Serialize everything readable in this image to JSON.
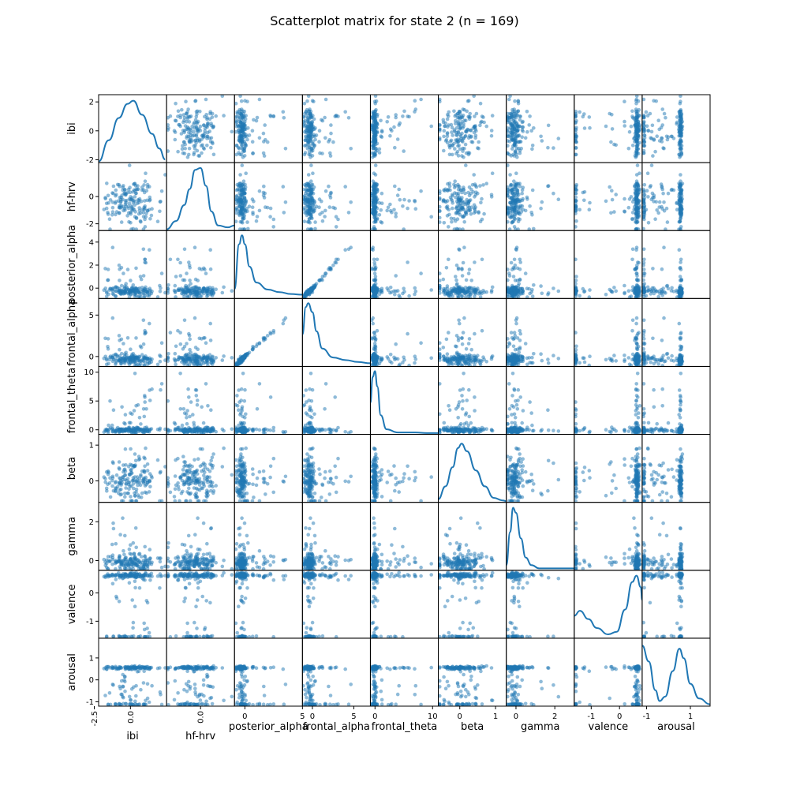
{
  "title": "Scatterplot matrix for state 2 (n = 169)",
  "colors": {
    "series": "#1f77b4"
  },
  "chart_data": {
    "type": "scatter",
    "kind": "scatter-matrix",
    "n": 169,
    "diagonal": "kde",
    "variables": [
      {
        "name": "ibi",
        "range": [
          -2.2,
          2.5
        ],
        "yticks": [
          2,
          0,
          -2
        ],
        "xticks": [
          0.0,
          -2.5
        ],
        "xticks_rotated": true,
        "kde": [
          [
            -2.2,
            0.02
          ],
          [
            -1.5,
            0.35
          ],
          [
            -0.8,
            0.7
          ],
          [
            -0.2,
            0.92
          ],
          [
            0.2,
            0.97
          ],
          [
            0.8,
            0.75
          ],
          [
            1.5,
            0.45
          ],
          [
            2.0,
            0.22
          ],
          [
            2.4,
            0.05
          ]
        ]
      },
      {
        "name": "hf-hrv",
        "range": [
          -2.5,
          2.5
        ],
        "yticks": [
          0,
          -2
        ],
        "xticks": [
          0.0
        ],
        "xticks_rotated": true,
        "kde": [
          [
            -2.5,
            0.02
          ],
          [
            -1.8,
            0.15
          ],
          [
            -1.2,
            0.4
          ],
          [
            -0.8,
            0.65
          ],
          [
            -0.4,
            0.95
          ],
          [
            0.0,
            0.98
          ],
          [
            0.4,
            0.7
          ],
          [
            0.8,
            0.3
          ],
          [
            1.3,
            0.08
          ],
          [
            2.0,
            0.05
          ],
          [
            2.5,
            0.08
          ]
        ]
      },
      {
        "name": "posterior_alpha",
        "range": [
          -0.9,
          5
        ],
        "yticks": [
          4,
          2,
          0
        ],
        "xticks": [
          0,
          5
        ],
        "xticks_rotated": false,
        "kde": [
          [
            -0.9,
            0.15
          ],
          [
            -0.5,
            0.85
          ],
          [
            -0.25,
            0.99
          ],
          [
            0.0,
            0.85
          ],
          [
            0.4,
            0.5
          ],
          [
            1.0,
            0.25
          ],
          [
            2.0,
            0.14
          ],
          [
            3.0,
            0.1
          ],
          [
            4.0,
            0.07
          ],
          [
            5.0,
            0.06
          ]
        ]
      },
      {
        "name": "frontal_alpha",
        "range": [
          -1.2,
          7
        ],
        "yticks": [
          5,
          0
        ],
        "xticks": [
          0,
          5
        ],
        "xticks_rotated": false,
        "kde": [
          [
            -1.2,
            0.5
          ],
          [
            -0.8,
            0.93
          ],
          [
            -0.5,
            0.99
          ],
          [
            0.0,
            0.85
          ],
          [
            0.5,
            0.55
          ],
          [
            1.2,
            0.28
          ],
          [
            2.5,
            0.14
          ],
          [
            4.0,
            0.1
          ],
          [
            5.5,
            0.07
          ],
          [
            7.0,
            0.05
          ]
        ]
      },
      {
        "name": "frontal_theta",
        "range": [
          -0.8,
          11
        ],
        "yticks": [
          10,
          5,
          0
        ],
        "xticks": [
          0,
          10
        ],
        "xticks_rotated": false,
        "kde": [
          [
            -0.8,
            0.5
          ],
          [
            -0.4,
            0.9
          ],
          [
            0.0,
            0.99
          ],
          [
            0.4,
            0.75
          ],
          [
            1.0,
            0.3
          ],
          [
            2.0,
            0.08
          ],
          [
            4.0,
            0.03
          ],
          [
            7.0,
            0.03
          ],
          [
            9.0,
            0.02
          ],
          [
            11.0,
            0.02
          ]
        ]
      },
      {
        "name": "beta",
        "range": [
          -0.6,
          1.3
        ],
        "yticks": [
          1,
          0
        ],
        "xticks": [
          0,
          1
        ],
        "xticks_rotated": false,
        "kde": [
          [
            -0.6,
            0.05
          ],
          [
            -0.4,
            0.25
          ],
          [
            -0.2,
            0.55
          ],
          [
            -0.05,
            0.85
          ],
          [
            0.05,
            0.92
          ],
          [
            0.2,
            0.8
          ],
          [
            0.45,
            0.5
          ],
          [
            0.7,
            0.25
          ],
          [
            0.95,
            0.07
          ],
          [
            1.2,
            0.03
          ],
          [
            1.3,
            0.02
          ]
        ]
      },
      {
        "name": "gamma",
        "range": [
          -0.5,
          3
        ],
        "yticks": [
          2,
          0
        ],
        "xticks": [
          0,
          2
        ],
        "xticks_rotated": false,
        "kde": [
          [
            -0.5,
            0.08
          ],
          [
            -0.3,
            0.6
          ],
          [
            -0.15,
            0.98
          ],
          [
            0.0,
            0.9
          ],
          [
            0.25,
            0.5
          ],
          [
            0.5,
            0.2
          ],
          [
            0.8,
            0.08
          ],
          [
            1.2,
            0.03
          ],
          [
            2.0,
            0.03
          ],
          [
            3.0,
            0.03
          ]
        ]
      },
      {
        "name": "valence",
        "range": [
          -1.6,
          0.8
        ],
        "yticks": [
          0,
          -1
        ],
        "xticks": [
          -1,
          0
        ],
        "xticks_rotated": false,
        "kde": [
          [
            -1.6,
            0.35
          ],
          [
            -1.4,
            0.43
          ],
          [
            -1.1,
            0.3
          ],
          [
            -0.8,
            0.16
          ],
          [
            -0.4,
            0.06
          ],
          [
            -0.1,
            0.1
          ],
          [
            0.2,
            0.45
          ],
          [
            0.45,
            0.88
          ],
          [
            0.6,
            0.98
          ],
          [
            0.75,
            0.8
          ],
          [
            0.8,
            0.6
          ]
        ]
      },
      {
        "name": "arousal",
        "range": [
          -1.2,
          1.9
        ],
        "yticks": [
          1,
          0,
          -1
        ],
        "xticks": [
          -1,
          1
        ],
        "xticks_rotated": false,
        "kde": [
          [
            -1.2,
            0.95
          ],
          [
            -0.9,
            0.7
          ],
          [
            -0.6,
            0.25
          ],
          [
            -0.4,
            0.08
          ],
          [
            -0.15,
            0.15
          ],
          [
            0.2,
            0.55
          ],
          [
            0.5,
            0.9
          ],
          [
            0.7,
            0.75
          ],
          [
            1.0,
            0.35
          ],
          [
            1.4,
            0.12
          ],
          [
            1.9,
            0.03
          ]
        ]
      }
    ],
    "point_generators": [
      {
        "kind": "normal",
        "mean": 0.0,
        "sd": 0.9
      },
      {
        "kind": "normal",
        "mean": -0.5,
        "sd": 0.9
      },
      {
        "kind": "skewed",
        "base": -0.3,
        "sd": 0.25,
        "tail": 4.5
      },
      {
        "kind": "skewed",
        "base": -0.4,
        "sd": 0.35,
        "tail": 6.5
      },
      {
        "kind": "skewed",
        "base": -0.1,
        "sd": 0.25,
        "tail": 10
      },
      {
        "kind": "normal",
        "mean": 0.05,
        "sd": 0.35
      },
      {
        "kind": "skewed",
        "base": -0.1,
        "sd": 0.22,
        "tail": 2.8
      },
      {
        "kind": "bimodal",
        "lo": -1.55,
        "hi": 0.62,
        "pHi": 0.7
      },
      {
        "kind": "bimodal",
        "lo": -1.12,
        "hi": 0.55,
        "pHi": 0.5
      }
    ]
  }
}
